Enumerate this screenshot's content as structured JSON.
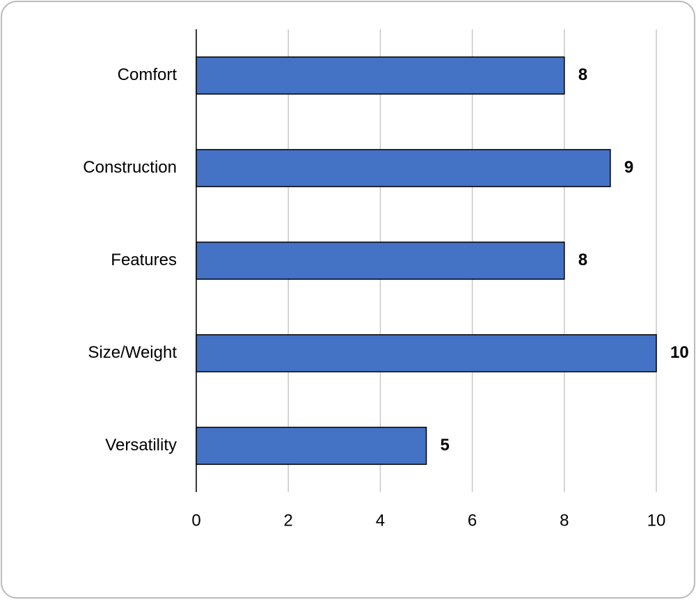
{
  "chart_data": {
    "type": "bar",
    "orientation": "horizontal",
    "categories": [
      "Comfort",
      "Construction",
      "Features",
      "Size/Weight",
      "Versatility"
    ],
    "values": [
      8,
      9,
      8,
      10,
      5
    ],
    "color": "#4472c4",
    "xlim": [
      0,
      10
    ],
    "xticks": [
      0,
      2,
      4,
      6,
      8,
      10
    ],
    "grid": true
  }
}
